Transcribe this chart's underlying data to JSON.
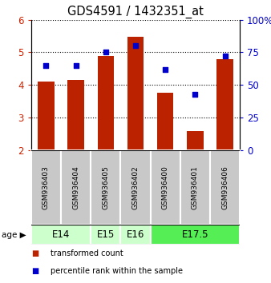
{
  "title": "GDS4591 / 1432351_at",
  "samples": [
    "GSM936403",
    "GSM936404",
    "GSM936405",
    "GSM936402",
    "GSM936400",
    "GSM936401",
    "GSM936406"
  ],
  "transformed_counts": [
    4.1,
    4.15,
    4.9,
    5.48,
    3.75,
    2.57,
    4.8
  ],
  "percentile_ranks": [
    65,
    65,
    75,
    80,
    62,
    43,
    72
  ],
  "ylim_left": [
    2,
    6
  ],
  "ylim_right": [
    0,
    100
  ],
  "yticks_left": [
    2,
    3,
    4,
    5,
    6
  ],
  "yticks_right": [
    0,
    25,
    50,
    75,
    100
  ],
  "bar_color": "#bb2200",
  "dot_color": "#0000cc",
  "bar_bottom": 2,
  "age_groups": [
    {
      "label": "E14",
      "cols": [
        0,
        1
      ],
      "color": "#ccffcc"
    },
    {
      "label": "E15",
      "cols": [
        2
      ],
      "color": "#ccffcc"
    },
    {
      "label": "E16",
      "cols": [
        3
      ],
      "color": "#ccffcc"
    },
    {
      "label": "E17.5",
      "cols": [
        4,
        5,
        6
      ],
      "color": "#55ee55"
    }
  ],
  "left_tick_color": "#cc2200",
  "right_tick_color": "#0000cc",
  "sample_bg": "#c8c8c8",
  "legend_items": [
    {
      "label": "transformed count",
      "color": "#bb2200"
    },
    {
      "label": "percentile rank within the sample",
      "color": "#0000cc"
    }
  ]
}
